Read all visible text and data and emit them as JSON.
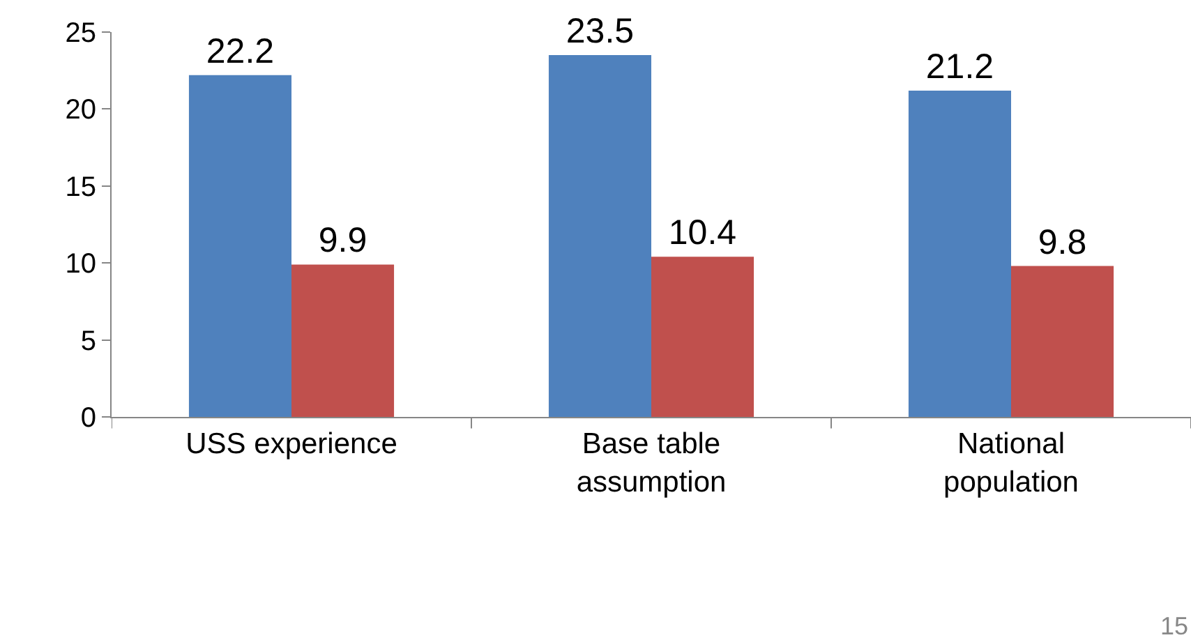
{
  "chart_data": {
    "type": "bar",
    "categories": [
      "USS experience",
      "Base table\nassumption",
      "National\npopulation"
    ],
    "series": [
      {
        "color": "#4f81bd",
        "values": [
          22.2,
          23.5,
          21.2
        ]
      },
      {
        "color": "#c0504d",
        "values": [
          9.9,
          10.4,
          9.8
        ]
      }
    ],
    "ylim": [
      0,
      25
    ],
    "yticks": [
      0,
      5,
      10,
      15,
      20,
      25
    ],
    "data_labels": true,
    "annotations": [
      "15"
    ]
  }
}
